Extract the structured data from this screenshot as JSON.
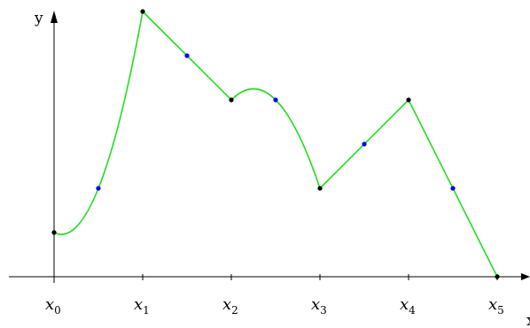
{
  "axes": {
    "y_label": "y",
    "x_label": "x"
  },
  "colors": {
    "curve": "#22dd22",
    "knot_point": "#000000",
    "mid_point": "#0000ee"
  },
  "tick_labels": [
    {
      "base": "x",
      "sub": "0"
    },
    {
      "base": "x",
      "sub": "1"
    },
    {
      "base": "x",
      "sub": "2"
    },
    {
      "base": "x",
      "sub": "3"
    },
    {
      "base": "x",
      "sub": "4"
    },
    {
      "base": "x",
      "sub": "5"
    }
  ],
  "chart_data": {
    "type": "line",
    "x": [
      0,
      1,
      2,
      3,
      4,
      5
    ],
    "knots_y": [
      0.5,
      3.0,
      2.0,
      1.0,
      2.0,
      0.0
    ],
    "midpoints": [
      {
        "x": 0.5,
        "y": 1.0
      },
      {
        "x": 1.5,
        "y": 2.5
      },
      {
        "x": 2.5,
        "y": 2.0
      },
      {
        "x": 3.5,
        "y": 1.5
      },
      {
        "x": 4.5,
        "y": 1.0
      }
    ],
    "segments": [
      {
        "from": 0,
        "to": 1,
        "kind": "quadratic"
      },
      {
        "from": 1,
        "to": 2,
        "kind": "linear"
      },
      {
        "from": 2,
        "to": 3,
        "kind": "quadratic"
      },
      {
        "from": 3,
        "to": 4,
        "kind": "linear"
      },
      {
        "from": 4,
        "to": 5,
        "kind": "linear"
      }
    ],
    "xlim": [
      -0.5,
      5.4
    ],
    "ylim": [
      0,
      3.0
    ]
  }
}
